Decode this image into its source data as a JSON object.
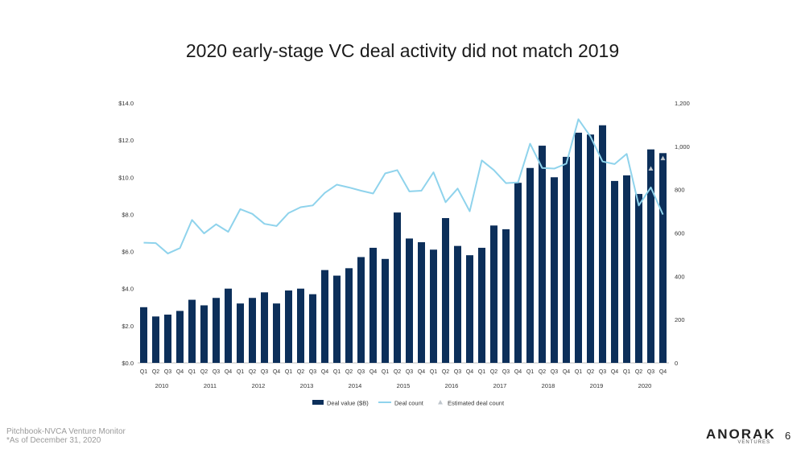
{
  "slide": {
    "title": "2020 early-stage VC deal activity did not match 2019",
    "source_line1": "Pitchbook-NVCA Venture Monitor",
    "source_line2": "*As of December 31, 2020",
    "logo_text": "ANORAK",
    "logo_sub": "VENTURES",
    "page_number": "6"
  },
  "colors": {
    "bar": "#0c2f5a",
    "line": "#8fd3ec",
    "estimate": "#bfc6cc",
    "axis_text": "#333333"
  },
  "chart_data": {
    "type": "bar",
    "quarters": [
      "Q1",
      "Q2",
      "Q3",
      "Q4",
      "Q1",
      "Q2",
      "Q3",
      "Q4",
      "Q1",
      "Q2",
      "Q3",
      "Q4",
      "Q1",
      "Q2",
      "Q3",
      "Q4",
      "Q1",
      "Q2",
      "Q3",
      "Q4",
      "Q1",
      "Q2",
      "Q3",
      "Q4",
      "Q1",
      "Q2",
      "Q3",
      "Q4",
      "Q1",
      "Q2",
      "Q3",
      "Q4",
      "Q1",
      "Q2",
      "Q3",
      "Q4",
      "Q1",
      "Q2",
      "Q3",
      "Q4",
      "Q1",
      "Q2",
      "Q3",
      "Q4"
    ],
    "years": [
      "2010",
      "2011",
      "2012",
      "2013",
      "2014",
      "2015",
      "2016",
      "2017",
      "2018",
      "2019",
      "2020"
    ],
    "series": [
      {
        "name": "Deal value ($B)",
        "axis": "left",
        "values": [
          3.0,
          2.5,
          2.6,
          2.8,
          3.4,
          3.1,
          3.5,
          4.0,
          3.2,
          3.5,
          3.8,
          3.2,
          3.9,
          4.0,
          3.7,
          5.0,
          4.7,
          5.1,
          5.7,
          6.2,
          5.6,
          8.1,
          6.7,
          6.5,
          6.1,
          7.8,
          6.3,
          5.8,
          6.2,
          7.4,
          7.2,
          9.7,
          10.5,
          11.7,
          10.0,
          11.1,
          12.4,
          12.3,
          12.8,
          9.8,
          10.1,
          9.1,
          11.5,
          11.3
        ]
      },
      {
        "name": "Deal count",
        "axis": "right",
        "values": [
          555,
          553,
          505,
          530,
          660,
          598,
          640,
          605,
          710,
          688,
          642,
          632,
          692,
          719,
          727,
          785,
          823,
          810,
          795,
          782,
          875,
          890,
          792,
          795,
          880,
          742,
          805,
          700,
          935,
          890,
          830,
          833,
          1012,
          900,
          897,
          920,
          1125,
          1045,
          930,
          918,
          965,
          727,
          810,
          685
        ]
      },
      {
        "name": "Estimated deal count",
        "axis": "right",
        "values": [
          null,
          null,
          null,
          null,
          null,
          null,
          null,
          null,
          null,
          null,
          null,
          null,
          null,
          null,
          null,
          null,
          null,
          null,
          null,
          null,
          null,
          null,
          null,
          null,
          null,
          null,
          null,
          null,
          null,
          null,
          null,
          null,
          null,
          null,
          null,
          null,
          null,
          null,
          null,
          null,
          null,
          null,
          897,
          945
        ]
      }
    ],
    "left_axis": {
      "ylim": [
        0,
        14
      ],
      "ticks": [
        "$0.0",
        "$2.0",
        "$4.0",
        "$6.0",
        "$8.0",
        "$10.0",
        "$12.0",
        "$14.0"
      ]
    },
    "right_axis": {
      "ylim": [
        0,
        1200
      ],
      "ticks": [
        "0",
        "200",
        "400",
        "600",
        "800",
        "1,000",
        "1,200"
      ]
    },
    "legend": [
      "Deal value ($B)",
      "Deal count",
      "Estimated deal count"
    ],
    "legend_position": "bottom",
    "grid": false
  }
}
